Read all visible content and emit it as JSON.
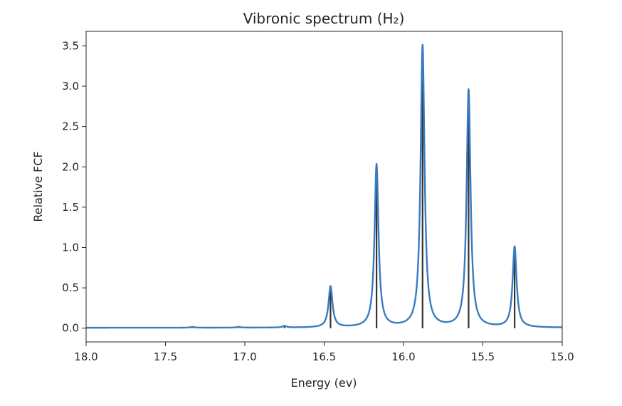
{
  "chart_data": {
    "type": "line",
    "title": "Vibronic spectrum (H₂)",
    "xlabel": "Energy (ev)",
    "ylabel": "Relative FCF",
    "xlim": [
      18.0,
      15.0
    ],
    "ylim": [
      -0.17,
      3.68
    ],
    "x_inverted": true,
    "grid": false,
    "x_ticks": [
      18.0,
      17.5,
      17.0,
      16.5,
      16.0,
      15.5,
      15.0
    ],
    "x_tick_labels": [
      "18.0",
      "17.5",
      "17.0",
      "16.5",
      "16.0",
      "15.5",
      "15.0"
    ],
    "y_ticks": [
      0.0,
      0.5,
      1.0,
      1.5,
      2.0,
      2.5,
      3.0,
      3.5
    ],
    "y_tick_labels": [
      "0.0",
      "0.5",
      "1.0",
      "1.5",
      "2.0",
      "2.5",
      "3.0",
      "3.5"
    ],
    "series": [
      {
        "kind": "stick",
        "color": "#333333",
        "x": [
          17.33,
          17.04,
          16.75,
          16.46,
          16.17,
          15.88,
          15.59,
          15.3
        ],
        "values": [
          0.01,
          0.01,
          0.02,
          0.51,
          2.02,
          3.5,
          2.95,
          1.0
        ]
      },
      {
        "kind": "line",
        "color": "#3a7bbf",
        "broadening": "lorentzian",
        "hwhm": 0.015,
        "baseline": 0.005
      }
    ]
  }
}
